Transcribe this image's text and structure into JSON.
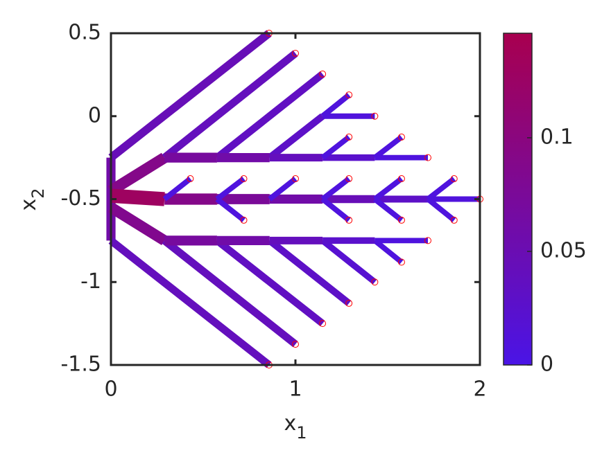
{
  "chart_data": {
    "type": "segments",
    "xlabel": [
      "x",
      "1"
    ],
    "ylabel": [
      "x",
      "2"
    ],
    "xlim": [
      0,
      2
    ],
    "xticks": [
      0,
      1,
      2
    ],
    "ylim": [
      -1.5,
      0.5
    ],
    "yticks": [
      -1.5,
      -1,
      -0.5,
      0,
      0.5
    ],
    "clim": [
      0,
      0.146
    ],
    "cticks": [
      0,
      0.05,
      0.1
    ],
    "colormap": [
      "#4a14e6",
      "#a8004f"
    ],
    "point_color": "#ff0000",
    "segments": [
      {
        "x": [
          0,
          0
        ],
        "y": [
          -0.25,
          -0.75
        ],
        "value": 0.06
      },
      {
        "x": [
          0,
          0.29
        ],
        "y": [
          -0.45,
          -0.25
        ],
        "value": 0.09
      },
      {
        "x": [
          0,
          0.29
        ],
        "y": [
          -0.48,
          -0.5
        ],
        "value": 0.13
      },
      {
        "x": [
          0,
          0.29
        ],
        "y": [
          -0.55,
          -0.75
        ],
        "value": 0.085
      },
      {
        "x": [
          0,
          0.857
        ],
        "y": [
          -0.25,
          0.5
        ],
        "value": 0.045
      },
      {
        "x": [
          0.29,
          1.0
        ],
        "y": [
          -0.25,
          0.379
        ],
        "value": 0.04
      },
      {
        "x": [
          0.575,
          1.147
        ],
        "y": [
          -0.25,
          0.254
        ],
        "value": 0.035
      },
      {
        "x": [
          0.86,
          1.147
        ],
        "y": [
          -0.25,
          0
        ],
        "value": 0.03
      },
      {
        "x": [
          1.147,
          1.29
        ],
        "y": [
          0,
          0.128
        ],
        "value": 0.01
      },
      {
        "x": [
          1.147,
          1.43
        ],
        "y": [
          0,
          0
        ],
        "value": 0.01
      },
      {
        "x": [
          0.29,
          0.575
        ],
        "y": [
          -0.25,
          -0.25
        ],
        "value": 0.07
      },
      {
        "x": [
          0.575,
          0.86
        ],
        "y": [
          -0.25,
          -0.25
        ],
        "value": 0.06
      },
      {
        "x": [
          0.86,
          1.147
        ],
        "y": [
          -0.25,
          -0.25
        ],
        "value": 0.04
      },
      {
        "x": [
          1.147,
          1.43
        ],
        "y": [
          -0.25,
          -0.25
        ],
        "value": 0.025
      },
      {
        "x": [
          1.43,
          1.718
        ],
        "y": [
          -0.25,
          -0.25
        ],
        "value": 0.008
      },
      {
        "x": [
          1.147,
          1.29
        ],
        "y": [
          -0.25,
          -0.126
        ],
        "value": 0.008
      },
      {
        "x": [
          1.43,
          1.575
        ],
        "y": [
          -0.25,
          -0.126
        ],
        "value": 0.008
      },
      {
        "x": [
          0.29,
          0.575
        ],
        "y": [
          -0.5,
          -0.5
        ],
        "value": 0.09
      },
      {
        "x": [
          0.575,
          0.86
        ],
        "y": [
          -0.5,
          -0.5
        ],
        "value": 0.075
      },
      {
        "x": [
          0.86,
          1.147
        ],
        "y": [
          -0.5,
          -0.5
        ],
        "value": 0.06
      },
      {
        "x": [
          1.147,
          1.43
        ],
        "y": [
          -0.5,
          -0.5
        ],
        "value": 0.045
      },
      {
        "x": [
          1.43,
          1.718
        ],
        "y": [
          -0.5,
          -0.5
        ],
        "value": 0.03
      },
      {
        "x": [
          1.718,
          2.0
        ],
        "y": [
          -0.5,
          -0.5
        ],
        "value": 0.01
      },
      {
        "x": [
          0.29,
          0.43
        ],
        "y": [
          -0.5,
          -0.377
        ],
        "value": 0.008
      },
      {
        "x": [
          0.575,
          0.72
        ],
        "y": [
          -0.5,
          -0.377
        ],
        "value": 0.008
      },
      {
        "x": [
          0.575,
          0.72
        ],
        "y": [
          -0.5,
          -0.627
        ],
        "value": 0.008
      },
      {
        "x": [
          0.86,
          1.0
        ],
        "y": [
          -0.5,
          -0.377
        ],
        "value": 0.008
      },
      {
        "x": [
          1.147,
          1.29
        ],
        "y": [
          -0.5,
          -0.377
        ],
        "value": 0.008
      },
      {
        "x": [
          1.147,
          1.29
        ],
        "y": [
          -0.5,
          -0.627
        ],
        "value": 0.008
      },
      {
        "x": [
          1.43,
          1.575
        ],
        "y": [
          -0.5,
          -0.377
        ],
        "value": 0.008
      },
      {
        "x": [
          1.43,
          1.575
        ],
        "y": [
          -0.5,
          -0.627
        ],
        "value": 0.008
      },
      {
        "x": [
          1.718,
          1.86
        ],
        "y": [
          -0.5,
          -0.377
        ],
        "value": 0.008
      },
      {
        "x": [
          1.718,
          1.86
        ],
        "y": [
          -0.5,
          -0.627
        ],
        "value": 0.008
      },
      {
        "x": [
          0,
          0.857
        ],
        "y": [
          -0.75,
          -1.5
        ],
        "value": 0.04
      },
      {
        "x": [
          0.29,
          1.0
        ],
        "y": [
          -0.75,
          -1.375
        ],
        "value": 0.04
      },
      {
        "x": [
          0.575,
          1.147
        ],
        "y": [
          -0.75,
          -1.25
        ],
        "value": 0.035
      },
      {
        "x": [
          0.86,
          1.29
        ],
        "y": [
          -0.75,
          -1.128
        ],
        "value": 0.03
      },
      {
        "x": [
          1.147,
          1.43
        ],
        "y": [
          -0.75,
          -1.0
        ],
        "value": 0.02
      },
      {
        "x": [
          1.43,
          1.575
        ],
        "y": [
          -0.75,
          -0.88
        ],
        "value": 0.008
      },
      {
        "x": [
          0.29,
          0.575
        ],
        "y": [
          -0.75,
          -0.75
        ],
        "value": 0.07
      },
      {
        "x": [
          0.575,
          0.86
        ],
        "y": [
          -0.75,
          -0.75
        ],
        "value": 0.06
      },
      {
        "x": [
          0.86,
          1.147
        ],
        "y": [
          -0.75,
          -0.75
        ],
        "value": 0.04
      },
      {
        "x": [
          1.147,
          1.43
        ],
        "y": [
          -0.75,
          -0.75
        ],
        "value": 0.025
      },
      {
        "x": [
          1.43,
          1.718
        ],
        "y": [
          -0.75,
          -0.75
        ],
        "value": 0.008
      }
    ],
    "points": {
      "x": [
        0.857,
        1.0,
        1.147,
        1.29,
        1.43,
        1.29,
        1.575,
        1.718,
        0.43,
        0.72,
        1.0,
        1.29,
        1.575,
        1.86,
        2.0,
        0.72,
        1.29,
        1.575,
        1.86,
        1.718,
        1.575,
        1.43,
        1.29,
        1.147,
        1.0,
        0.857
      ],
      "y": [
        0.5,
        0.379,
        0.254,
        0.128,
        0,
        -0.126,
        -0.126,
        -0.25,
        -0.377,
        -0.377,
        -0.377,
        -0.377,
        -0.377,
        -0.377,
        -0.5,
        -0.627,
        -0.627,
        -0.627,
        -0.627,
        -0.75,
        -0.88,
        -1.0,
        -1.128,
        -1.25,
        -1.375,
        -1.5
      ]
    }
  }
}
